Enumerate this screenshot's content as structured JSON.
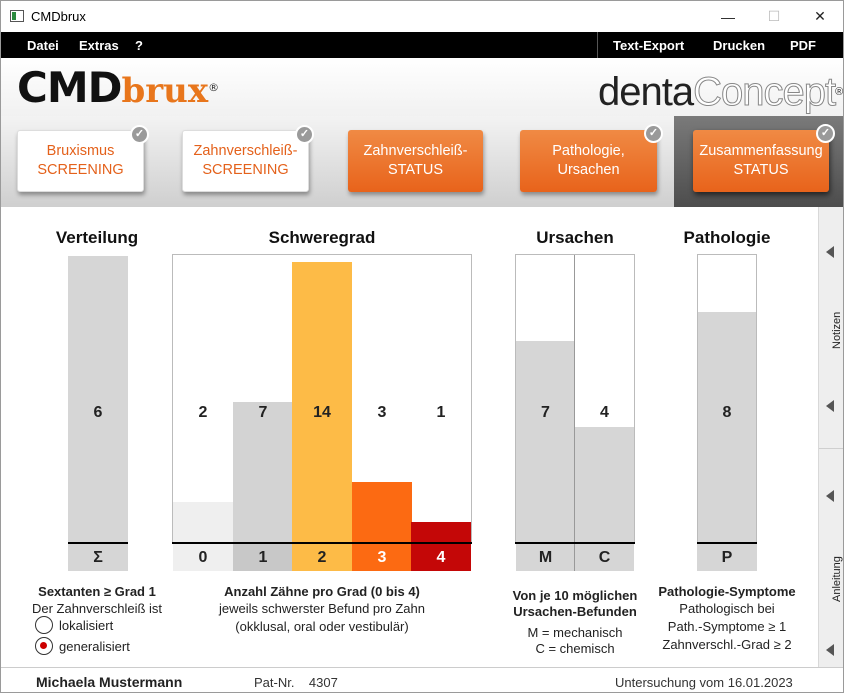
{
  "window": {
    "title": "CMDbrux",
    "minimize": "—",
    "maximize": "☐",
    "close": "✕"
  },
  "menu": {
    "left": [
      "Datei",
      "Extras",
      "?"
    ],
    "right": [
      "Text-Export",
      "Drucken",
      "PDF"
    ]
  },
  "logo": {
    "cmd": "CMD",
    "brux": "brux",
    "reg": "®",
    "denta": "denta",
    "concept": "Concept"
  },
  "tabs": [
    {
      "line1": "Bruxismus",
      "line2": "SCREENING",
      "checked": true
    },
    {
      "line1": "Zahnverschleiß-",
      "line2": "SCREENING",
      "checked": true
    },
    {
      "line1": "Zahnverschleiß-",
      "line2": "STATUS",
      "checked": false
    },
    {
      "line1": "Pathologie,",
      "line2": "Ursachen",
      "checked": true
    },
    {
      "line1": "Zusammenfassung",
      "line2": "STATUS",
      "checked": true
    }
  ],
  "check_glyph": "✓",
  "side": {
    "notizen": "Notizen",
    "anleitung": "Anleitung"
  },
  "verteilung": {
    "title": "Verteilung",
    "value": "6",
    "axis": "Σ",
    "caption1": "Sextanten ≥ Grad 1",
    "caption2": "Der Zahnverschleiß ist",
    "options": [
      "lokalisiert",
      "generalisiert"
    ],
    "selected": 1
  },
  "schweregrad": {
    "title": "Schweregrad",
    "caption1": "Anzahl Zähne pro Grad (0 bis 4)",
    "caption2": "jeweils schwerster Befund pro Zahn",
    "caption3": "(okklusal, oral oder vestibulär)"
  },
  "ursachen": {
    "title": "Ursachen",
    "caption1": "Von je 10 möglichen",
    "caption2": "Ursachen-Befunden",
    "caption3": "M = mechanisch",
    "caption4": "C = chemisch"
  },
  "pathologie": {
    "title": "Pathologie",
    "value": "8",
    "axis": "P",
    "caption1": "Pathologie-Symptome",
    "caption2": "Pathologisch bei",
    "caption3": "Path.-Symptome ≥ 1",
    "caption4": "Zahnverschl.-Grad ≥ 2"
  },
  "chart_data": [
    {
      "type": "bar",
      "title": "Verteilung",
      "categories": [
        "Σ"
      ],
      "values": [
        6
      ],
      "ylim": [
        0,
        6
      ]
    },
    {
      "type": "bar",
      "title": "Schweregrad",
      "categories": [
        "0",
        "1",
        "2",
        "3",
        "4"
      ],
      "values": [
        2,
        7,
        14,
        3,
        1
      ],
      "ylim": [
        0,
        14
      ],
      "colors": [
        "#efefef",
        "#d3d3d3",
        "#fdbb47",
        "#fc6a12",
        "#c40707"
      ]
    },
    {
      "type": "bar",
      "title": "Ursachen",
      "categories": [
        "M",
        "C"
      ],
      "values": [
        7,
        4
      ],
      "ylim": [
        0,
        10
      ]
    },
    {
      "type": "bar",
      "title": "Pathologie",
      "categories": [
        "P"
      ],
      "values": [
        8
      ],
      "ylim": [
        0,
        10
      ]
    }
  ],
  "footer": {
    "name": "Michaela Mustermann",
    "patnr_label": "Pat-Nr.",
    "patnr": "4307",
    "date": "Untersuchung vom  16.01.2023"
  }
}
